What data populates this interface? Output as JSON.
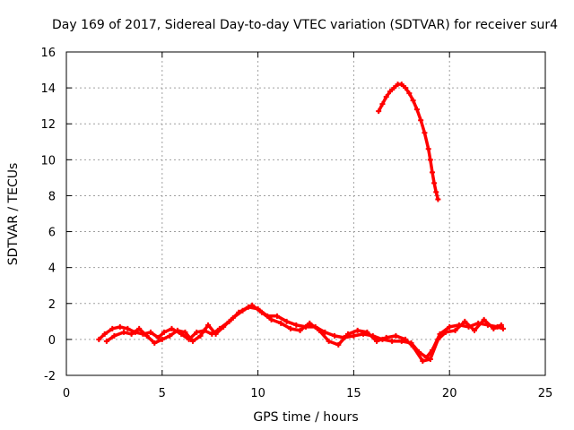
{
  "chart_data": {
    "type": "scatter",
    "title": "Day 169 of 2017, Sidereal Day-to-day VTEC variation (SDTVAR) for receiver sur4",
    "xlabel": "GPS time / hours",
    "ylabel": "SDTVAR / TECUs",
    "xlim": [
      0,
      25
    ],
    "ylim": [
      -2,
      16
    ],
    "xticks": [
      "0",
      "5",
      "10",
      "15",
      "20",
      "25"
    ],
    "yticks": [
      "-2",
      "0",
      "2",
      "4",
      "6",
      "8",
      "10",
      "12",
      "14",
      "16"
    ],
    "grid": true,
    "color": "#ff0000",
    "series": [
      {
        "name": "arc-low-1",
        "points": [
          [
            1.7,
            0.0
          ],
          [
            2.0,
            0.3
          ],
          [
            2.4,
            0.6
          ],
          [
            2.8,
            0.7
          ],
          [
            3.2,
            0.6
          ],
          [
            3.6,
            0.4
          ],
          [
            4.0,
            0.3
          ],
          [
            4.4,
            0.4
          ],
          [
            4.8,
            0.1
          ],
          [
            5.1,
            0.4
          ],
          [
            5.5,
            0.6
          ],
          [
            6.0,
            0.3
          ],
          [
            6.4,
            0.0
          ],
          [
            6.8,
            0.4
          ],
          [
            7.2,
            0.5
          ],
          [
            7.6,
            0.3
          ],
          [
            8.0,
            0.6
          ],
          [
            8.5,
            1.0
          ],
          [
            9.0,
            1.5
          ],
          [
            9.5,
            1.8
          ],
          [
            10.0,
            1.7
          ],
          [
            10.5,
            1.3
          ],
          [
            11.0,
            1.3
          ],
          [
            11.5,
            1.0
          ],
          [
            12.0,
            0.8
          ],
          [
            12.5,
            0.7
          ],
          [
            13.0,
            0.7
          ],
          [
            13.5,
            0.4
          ],
          [
            14.0,
            0.2
          ],
          [
            14.5,
            0.1
          ],
          [
            15.0,
            0.2
          ],
          [
            15.5,
            0.3
          ],
          [
            16.0,
            0.2
          ],
          [
            16.5,
            0.0
          ],
          [
            17.0,
            -0.1
          ],
          [
            17.5,
            -0.1
          ],
          [
            18.0,
            -0.2
          ],
          [
            18.4,
            -0.7
          ],
          [
            18.8,
            -1.0
          ],
          [
            19.1,
            -0.6
          ],
          [
            19.5,
            0.3
          ],
          [
            20.0,
            0.7
          ],
          [
            20.5,
            0.8
          ],
          [
            21.0,
            0.7
          ],
          [
            21.5,
            0.9
          ],
          [
            22.0,
            0.8
          ],
          [
            22.5,
            0.7
          ],
          [
            22.8,
            0.6
          ]
        ]
      },
      {
        "name": "arc-low-2",
        "points": [
          [
            2.1,
            -0.1
          ],
          [
            2.5,
            0.2
          ],
          [
            3.0,
            0.4
          ],
          [
            3.4,
            0.3
          ],
          [
            3.8,
            0.6
          ],
          [
            4.2,
            0.2
          ],
          [
            4.6,
            -0.2
          ],
          [
            5.0,
            0.0
          ],
          [
            5.4,
            0.2
          ],
          [
            5.8,
            0.5
          ],
          [
            6.2,
            0.4
          ],
          [
            6.6,
            -0.1
          ],
          [
            7.0,
            0.2
          ],
          [
            7.4,
            0.8
          ],
          [
            7.8,
            0.3
          ],
          [
            8.2,
            0.7
          ],
          [
            8.7,
            1.2
          ],
          [
            9.2,
            1.6
          ],
          [
            9.7,
            1.9
          ],
          [
            10.2,
            1.5
          ],
          [
            10.7,
            1.1
          ],
          [
            11.2,
            0.9
          ],
          [
            11.7,
            0.6
          ],
          [
            12.2,
            0.5
          ],
          [
            12.7,
            0.9
          ],
          [
            13.2,
            0.5
          ],
          [
            13.7,
            -0.1
          ],
          [
            14.2,
            -0.3
          ],
          [
            14.7,
            0.3
          ],
          [
            15.2,
            0.5
          ],
          [
            15.7,
            0.4
          ],
          [
            16.2,
            -0.1
          ],
          [
            16.7,
            0.1
          ],
          [
            17.2,
            0.2
          ],
          [
            17.7,
            0.0
          ],
          [
            18.1,
            -0.4
          ],
          [
            18.6,
            -1.2
          ],
          [
            19.0,
            -1.1
          ],
          [
            19.4,
            0.0
          ],
          [
            19.8,
            0.4
          ],
          [
            20.3,
            0.5
          ],
          [
            20.8,
            1.0
          ],
          [
            21.3,
            0.5
          ],
          [
            21.8,
            1.1
          ],
          [
            22.3,
            0.6
          ],
          [
            22.7,
            0.8
          ]
        ]
      },
      {
        "name": "arc-high",
        "points": [
          [
            16.3,
            12.7
          ],
          [
            16.5,
            13.1
          ],
          [
            16.7,
            13.5
          ],
          [
            16.9,
            13.8
          ],
          [
            17.1,
            14.0
          ],
          [
            17.3,
            14.2
          ],
          [
            17.5,
            14.2
          ],
          [
            17.7,
            14.0
          ],
          [
            17.9,
            13.7
          ],
          [
            18.1,
            13.3
          ],
          [
            18.3,
            12.8
          ],
          [
            18.5,
            12.2
          ],
          [
            18.7,
            11.5
          ],
          [
            18.9,
            10.6
          ],
          [
            19.0,
            10.0
          ],
          [
            19.1,
            9.3
          ],
          [
            19.2,
            8.7
          ],
          [
            19.3,
            8.2
          ],
          [
            19.4,
            7.8
          ]
        ]
      }
    ]
  }
}
